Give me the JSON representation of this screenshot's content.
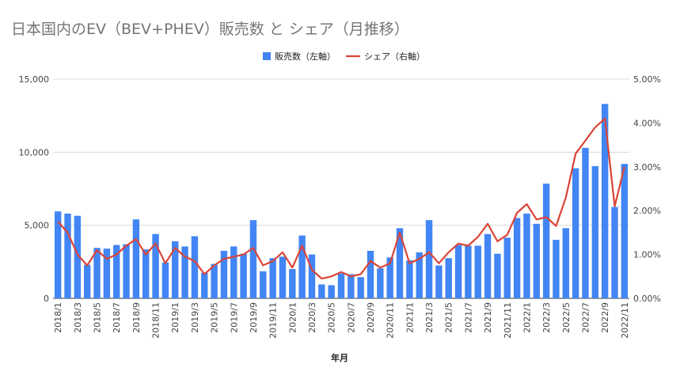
{
  "chart_data": {
    "type": "bar+line",
    "title": "日本国内のEV（BEV+PHEV）販売数 と シェア（月推移）",
    "xlabel": "年月",
    "ylabel": "",
    "ylabel_right": "",
    "ylim": [
      0,
      15000
    ],
    "ylim_right": [
      0,
      0.05
    ],
    "y_ticks": [
      "0",
      "5,000",
      "10,000",
      "15,000"
    ],
    "y_right_ticks": [
      "0.00%",
      "1.00%",
      "2.00%",
      "3.00%",
      "4.00%",
      "5.00%"
    ],
    "grid": true,
    "legend_position": "top",
    "categories": [
      "2018/1",
      "2018/2",
      "2018/3",
      "2018/4",
      "2018/5",
      "2018/6",
      "2018/7",
      "2018/8",
      "2018/9",
      "2018/10",
      "2018/11",
      "2018/12",
      "2019/1",
      "2019/2",
      "2019/3",
      "2019/4",
      "2019/5",
      "2019/6",
      "2019/7",
      "2019/8",
      "2019/9",
      "2019/10",
      "2019/11",
      "2019/12",
      "2020/1",
      "2020/2",
      "2020/3",
      "2020/4",
      "2020/5",
      "2020/6",
      "2020/7",
      "2020/8",
      "2020/9",
      "2020/10",
      "2020/11",
      "2020/12",
      "2021/1",
      "2021/2",
      "2021/3",
      "2021/4",
      "2021/5",
      "2021/6",
      "2021/7",
      "2021/8",
      "2021/9",
      "2021/10",
      "2021/11",
      "2021/12",
      "2022/1",
      "2022/2",
      "2022/3",
      "2022/4",
      "2022/5",
      "2022/6",
      "2022/7",
      "2022/8",
      "2022/9",
      "2022/10",
      "2022/11"
    ],
    "x_tick_labels": [
      "2018/1",
      "2018/3",
      "2018/5",
      "2018/7",
      "2018/9",
      "2018/11",
      "2019/1",
      "2019/3",
      "2019/5",
      "2019/7",
      "2019/9",
      "2019/11",
      "2020/1",
      "2020/3",
      "2020/5",
      "2020/7",
      "2020/9",
      "2020/11",
      "2021/1",
      "2021/3",
      "2021/5",
      "2021/7",
      "2021/9",
      "2021/11",
      "2022/1",
      "2022/3",
      "2022/5",
      "2022/7",
      "2022/9",
      "2022/11"
    ],
    "series": [
      {
        "name": "販売数（左軸）",
        "type": "bar",
        "axis": "left",
        "color": "#4285f4",
        "values": [
          5950,
          5800,
          5650,
          2300,
          3450,
          3400,
          3650,
          3700,
          5400,
          3350,
          4400,
          2450,
          3900,
          3550,
          4250,
          1750,
          2350,
          3250,
          3550,
          3050,
          5350,
          1850,
          2750,
          2850,
          2000,
          4300,
          3000,
          950,
          900,
          1700,
          1650,
          1450,
          3250,
          2050,
          2800,
          4800,
          2600,
          3150,
          5350,
          2250,
          2750,
          3650,
          3600,
          3600,
          4400,
          3050,
          4150,
          5500,
          5800,
          5100,
          7850,
          4000,
          4800,
          8900,
          10300,
          9050,
          13300,
          6250,
          9200
        ]
      },
      {
        "name": "シェア（右軸）",
        "type": "line",
        "axis": "right",
        "color": "#db4437",
        "values": [
          0.0175,
          0.015,
          0.01,
          0.0075,
          0.011,
          0.009,
          0.01,
          0.012,
          0.0135,
          0.01,
          0.0125,
          0.008,
          0.0115,
          0.0095,
          0.0085,
          0.0055,
          0.0075,
          0.009,
          0.0095,
          0.01,
          0.0115,
          0.0075,
          0.0085,
          0.0105,
          0.007,
          0.012,
          0.0065,
          0.0045,
          0.005,
          0.006,
          0.005,
          0.0055,
          0.0085,
          0.007,
          0.008,
          0.015,
          0.008,
          0.009,
          0.0105,
          0.008,
          0.0105,
          0.0125,
          0.012,
          0.014,
          0.017,
          0.013,
          0.0145,
          0.0195,
          0.0215,
          0.018,
          0.0185,
          0.0165,
          0.023,
          0.033,
          0.036,
          0.039,
          0.041,
          0.021,
          0.03
        ]
      }
    ]
  }
}
